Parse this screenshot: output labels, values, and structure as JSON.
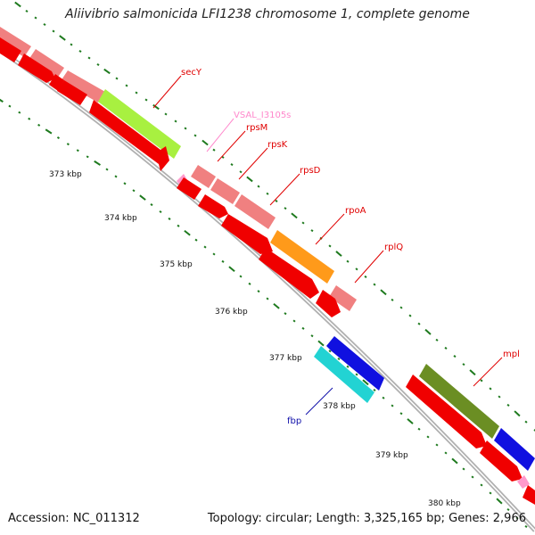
{
  "title": "Aliivibrio salmonicida LFI1238 chromosome 1, complete genome",
  "footer": {
    "accession": "Accession: NC_011312",
    "summary": "Topology: circular; Length: 3,325,165 bp; Genes: 2,966"
  },
  "ticks": [
    "373 kbp",
    "374 kbp",
    "375 kbp",
    "376 kbp",
    "377 kbp",
    "378 kbp",
    "379 kbp",
    "380 kbp"
  ],
  "gene_labels": [
    {
      "name": "secY",
      "color": "#e00000"
    },
    {
      "name": "VSAL_I3105s",
      "color": "#ff88cc"
    },
    {
      "name": "rpsM",
      "color": "#e00000"
    },
    {
      "name": "rpsK",
      "color": "#e00000"
    },
    {
      "name": "rpsD",
      "color": "#e00000"
    },
    {
      "name": "rpoA",
      "color": "#e00000"
    },
    {
      "name": "rplQ",
      "color": "#e00000"
    },
    {
      "name": "fbp",
      "color": "#1010aa"
    },
    {
      "name": "mpl",
      "color": "#e00000"
    }
  ],
  "colors": {
    "cds": "#f00000",
    "gene": "#f08080",
    "cog_green_light": "#a8f040",
    "cog_orange": "#ff9a1a",
    "cog_olive": "#6b8e23",
    "cog_blue": "#1010e0",
    "cog_cyan": "#22d3d3",
    "trna": "#ff99cc",
    "backbone": "#999999",
    "tick": "#1e7a1e"
  }
}
